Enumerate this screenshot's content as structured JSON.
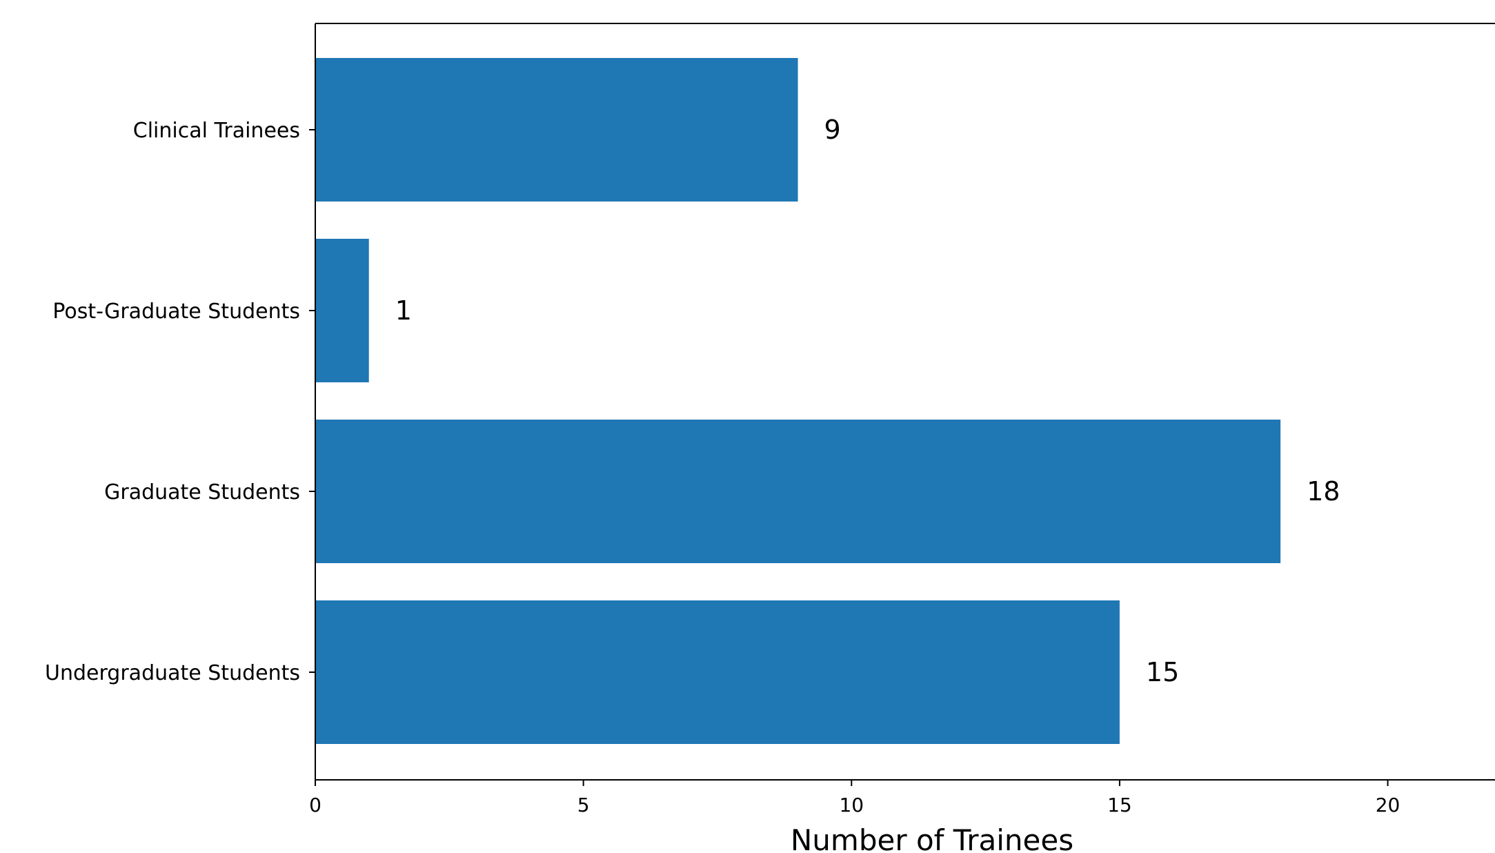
{
  "chart_data": {
    "type": "bar",
    "orientation": "horizontal",
    "categories": [
      "Clinical Trainees",
      "Post-Graduate Students",
      "Graduate Students",
      "Undergraduate Students"
    ],
    "values": [
      9,
      1,
      18,
      15
    ],
    "data_labels": [
      "9",
      "1",
      "18",
      "15"
    ],
    "title": "",
    "xlabel": "Number of Trainees",
    "ylabel": "",
    "xlim": [
      0,
      22
    ],
    "xticks": [
      0,
      5,
      10,
      15,
      20
    ],
    "xtick_labels": [
      "0",
      "5",
      "10",
      "15",
      "20"
    ],
    "grid": false,
    "bar_color": "#1f77b4"
  }
}
